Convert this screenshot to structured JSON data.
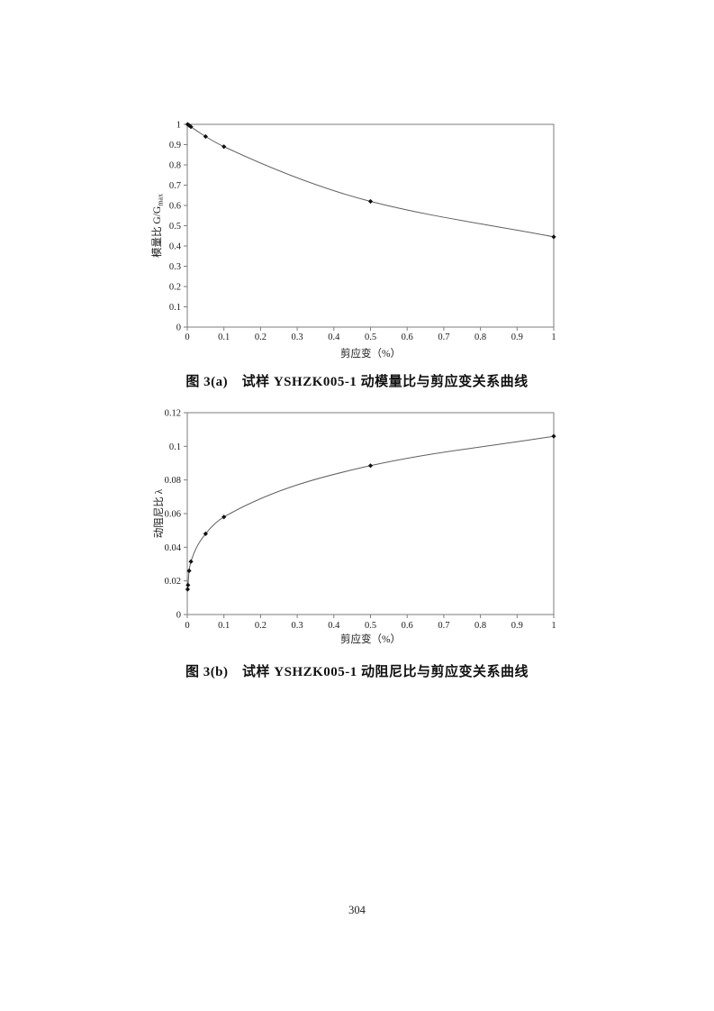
{
  "page": {
    "number": "304"
  },
  "figures": [
    {
      "caption": "图 3(a)　试样 YSHZK005-1 动模量比与剪应变关系曲线"
    },
    {
      "caption": "图 3(b)　试样 YSHZK005-1 动阻尼比与剪应变关系曲线"
    }
  ],
  "colors": {
    "axis": "#7d7d7d",
    "curve": "#5f5f5f",
    "marker": "#111111",
    "text": "#1a1a1a"
  },
  "chart_data": [
    {
      "type": "line",
      "title": "",
      "series_name": "dynamic modulus ratio vs shear strain",
      "xlabel": "剪应变（%）",
      "ylabel": "模量比 G/G",
      "ylabel_subscript": "max",
      "x": [
        0.001,
        0.005,
        0.01,
        0.05,
        0.1,
        0.5,
        1
      ],
      "y": [
        1.0,
        0.995,
        0.988,
        0.94,
        0.89,
        0.62,
        0.445
      ],
      "xlim": [
        0,
        1
      ],
      "ylim": [
        0,
        1
      ],
      "xticks": [
        0,
        0.1,
        0.2,
        0.3,
        0.4,
        0.5,
        0.6,
        0.7,
        0.8,
        0.9,
        1
      ],
      "xtick_labels": [
        "0",
        "0.1",
        "0.2",
        "0.3",
        "0.4",
        "0.5",
        "0.6",
        "0.7",
        "0.8",
        "0.9",
        "1"
      ],
      "yticks": [
        0,
        0.1,
        0.2,
        0.3,
        0.4,
        0.5,
        0.6,
        0.7,
        0.8,
        0.9,
        1
      ],
      "ytick_labels": [
        "0",
        "0.1",
        "0.2",
        "0.3",
        "0.4",
        "0.5",
        "0.6",
        "0.7",
        "0.8",
        "0.9",
        "1"
      ],
      "grid": false,
      "legend": null,
      "marker": "diamond"
    },
    {
      "type": "line",
      "title": "",
      "series_name": "dynamic damping ratio vs shear strain",
      "xlabel": "剪应变（%）",
      "ylabel": "动阻尼比 λ",
      "ylabel_subscript": "",
      "x": [
        0.001,
        0.002,
        0.005,
        0.01,
        0.05,
        0.1,
        0.5,
        1
      ],
      "y": [
        0.015,
        0.0175,
        0.026,
        0.0315,
        0.048,
        0.058,
        0.0885,
        0.106
      ],
      "xlim": [
        0,
        1
      ],
      "ylim": [
        0,
        0.12
      ],
      "xticks": [
        0,
        0.1,
        0.2,
        0.3,
        0.4,
        0.5,
        0.6,
        0.7,
        0.8,
        0.9,
        1
      ],
      "xtick_labels": [
        "0",
        "0.1",
        "0.2",
        "0.3",
        "0.4",
        "0.5",
        "0.6",
        "0.7",
        "0.8",
        "0.9",
        "1"
      ],
      "yticks": [
        0,
        0.02,
        0.04,
        0.06,
        0.08,
        0.1,
        0.12
      ],
      "ytick_labels": [
        "0",
        "0.02",
        "0.04",
        "0.06",
        "0.08",
        "0.1",
        "0.12"
      ],
      "grid": false,
      "legend": null,
      "marker": "diamond"
    }
  ]
}
